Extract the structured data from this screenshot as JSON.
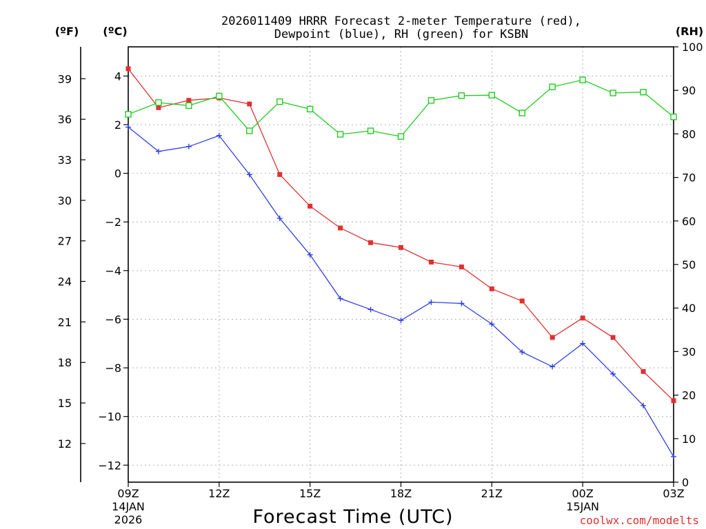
{
  "chart_data": {
    "type": "line",
    "title_line1": "2026011409 HRRR Forecast 2-meter Temperature (red),",
    "title_line2": "Dewpoint (blue), RH (green) for KSBN",
    "xlabel": "Forecast Time (UTC)",
    "left_outer_unit": "(ºF)",
    "left_inner_unit": "(ºC)",
    "right_unit": "(RH)",
    "credit": "coolwx.com/modelts",
    "x_hours": [
      0,
      1,
      2,
      3,
      4,
      5,
      6,
      7,
      8,
      9,
      10,
      11,
      12,
      13,
      14,
      15,
      16,
      17,
      18
    ],
    "x_ticks": [
      {
        "h": 0,
        "label": "09Z",
        "sub1": "14JAN",
        "sub2": "2026"
      },
      {
        "h": 3,
        "label": "12Z",
        "sub1": "",
        "sub2": ""
      },
      {
        "h": 6,
        "label": "15Z",
        "sub1": "",
        "sub2": ""
      },
      {
        "h": 9,
        "label": "18Z",
        "sub1": "",
        "sub2": ""
      },
      {
        "h": 12,
        "label": "21Z",
        "sub1": "",
        "sub2": ""
      },
      {
        "h": 15,
        "label": "00Z",
        "sub1": "15JAN",
        "sub2": ""
      },
      {
        "h": 18,
        "label": "03Z",
        "sub1": "",
        "sub2": ""
      }
    ],
    "xlim": [
      0,
      18
    ],
    "ylim_c": [
      -12.7,
      5.2
    ],
    "ylim_rh": [
      0,
      100
    ],
    "c_ticks": [
      {
        "v": 4,
        "label": "4"
      },
      {
        "v": 2,
        "label": "2"
      },
      {
        "v": 0,
        "label": "0"
      },
      {
        "v": -2,
        "label": "−2"
      },
      {
        "v": -4,
        "label": "−4"
      },
      {
        "v": -6,
        "label": "−6"
      },
      {
        "v": -8,
        "label": "−8"
      },
      {
        "v": -10,
        "label": "−10"
      },
      {
        "v": -12,
        "label": "−12"
      }
    ],
    "f_ticks": [
      {
        "v": 39,
        "label": "39"
      },
      {
        "v": 36,
        "label": "36"
      },
      {
        "v": 33,
        "label": "33"
      },
      {
        "v": 30,
        "label": "30"
      },
      {
        "v": 27,
        "label": "27"
      },
      {
        "v": 24,
        "label": "24"
      },
      {
        "v": 21,
        "label": "21"
      },
      {
        "v": 18,
        "label": "18"
      },
      {
        "v": 15,
        "label": "15"
      },
      {
        "v": 12,
        "label": "12"
      }
    ],
    "rh_ticks": [
      {
        "v": 100,
        "label": "100"
      },
      {
        "v": 90,
        "label": "90"
      },
      {
        "v": 80,
        "label": "80"
      },
      {
        "v": 70,
        "label": "70"
      },
      {
        "v": 60,
        "label": "60"
      },
      {
        "v": 50,
        "label": "50"
      },
      {
        "v": 40,
        "label": "40"
      },
      {
        "v": 30,
        "label": "30"
      },
      {
        "v": 20,
        "label": "20"
      },
      {
        "v": 10,
        "label": "10"
      },
      {
        "v": 0,
        "label": "0"
      }
    ],
    "grid": true,
    "series": [
      {
        "name": "Temperature",
        "unit": "C",
        "color": "#e03030",
        "marker": "filled-square",
        "values": [
          4.3,
          2.7,
          3.0,
          3.1,
          2.85,
          -0.05,
          -1.35,
          -2.25,
          -2.85,
          -3.05,
          -3.65,
          -3.85,
          -4.75,
          -5.25,
          -6.75,
          -5.95,
          -6.75,
          -8.15,
          -9.35
        ]
      },
      {
        "name": "Dewpoint",
        "unit": "C",
        "color": "#3040e0",
        "marker": "plus",
        "values": [
          1.9,
          0.9,
          1.1,
          1.55,
          -0.05,
          -1.85,
          -3.35,
          -5.15,
          -5.6,
          -6.05,
          -5.3,
          -5.35,
          -6.2,
          -7.35,
          -7.95,
          -7.0,
          -8.25,
          -9.55,
          -11.65
        ]
      },
      {
        "name": "RH",
        "unit": "%",
        "color": "#20cc20",
        "marker": "open-square",
        "values": [
          84.5,
          87.2,
          86.5,
          88.7,
          80.7,
          87.4,
          85.7,
          79.9,
          80.7,
          79.4,
          87.7,
          88.8,
          88.9,
          84.8,
          90.8,
          92.4,
          89.4,
          89.6,
          83.9
        ]
      }
    ]
  }
}
